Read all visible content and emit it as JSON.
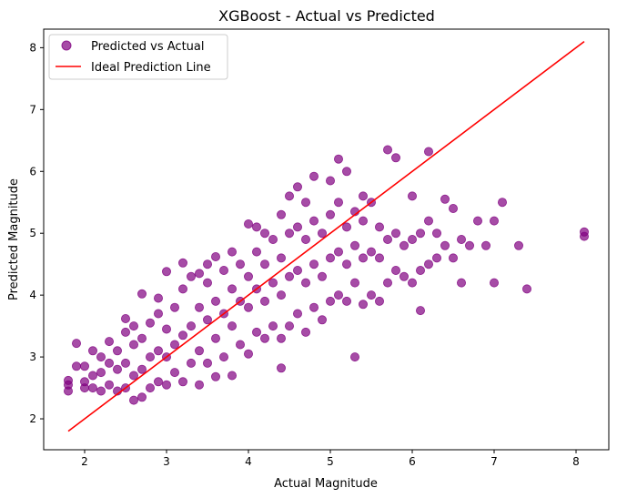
{
  "chart_data": {
    "type": "scatter",
    "title": "XGBoost - Actual vs Predicted",
    "xlabel": "Actual Magnitude",
    "ylabel": "Predicted Magnitude",
    "xlim": [
      1.5,
      8.4
    ],
    "ylim": [
      1.5,
      8.3
    ],
    "x_ticks": [
      "2",
      "3",
      "4",
      "5",
      "6",
      "7",
      "8"
    ],
    "y_ticks": [
      "2",
      "3",
      "4",
      "5",
      "6",
      "7",
      "8"
    ],
    "grid": false,
    "legend_position": "top-left",
    "colors": {
      "points": "#800080",
      "ideal_line": "#ff0000"
    },
    "series": [
      {
        "name": "Predicted vs Actual",
        "kind": "scatter",
        "points": [
          [
            1.8,
            2.45
          ],
          [
            1.8,
            2.55
          ],
          [
            1.8,
            2.62
          ],
          [
            1.9,
            2.85
          ],
          [
            1.9,
            3.22
          ],
          [
            2.0,
            2.5
          ],
          [
            2.0,
            2.6
          ],
          [
            2.0,
            2.85
          ],
          [
            2.1,
            2.5
          ],
          [
            2.1,
            2.7
          ],
          [
            2.1,
            3.1
          ],
          [
            2.2,
            2.45
          ],
          [
            2.2,
            2.75
          ],
          [
            2.2,
            3.0
          ],
          [
            2.3,
            2.55
          ],
          [
            2.3,
            2.9
          ],
          [
            2.3,
            3.25
          ],
          [
            2.4,
            2.45
          ],
          [
            2.4,
            2.8
          ],
          [
            2.4,
            3.1
          ],
          [
            2.5,
            2.5
          ],
          [
            2.5,
            2.9
          ],
          [
            2.5,
            3.4
          ],
          [
            2.5,
            3.62
          ],
          [
            2.6,
            2.3
          ],
          [
            2.6,
            2.7
          ],
          [
            2.6,
            3.2
          ],
          [
            2.6,
            3.5
          ],
          [
            2.7,
            2.35
          ],
          [
            2.7,
            2.8
          ],
          [
            2.7,
            3.3
          ],
          [
            2.7,
            4.02
          ],
          [
            2.8,
            2.5
          ],
          [
            2.8,
            3.0
          ],
          [
            2.8,
            3.55
          ],
          [
            2.9,
            2.6
          ],
          [
            2.9,
            3.1
          ],
          [
            2.9,
            3.7
          ],
          [
            2.9,
            3.95
          ],
          [
            3.0,
            2.55
          ],
          [
            3.0,
            3.0
          ],
          [
            3.0,
            3.45
          ],
          [
            3.0,
            4.38
          ],
          [
            3.1,
            2.75
          ],
          [
            3.1,
            3.2
          ],
          [
            3.1,
            3.8
          ],
          [
            3.2,
            2.6
          ],
          [
            3.2,
            3.35
          ],
          [
            3.2,
            4.1
          ],
          [
            3.2,
            4.52
          ],
          [
            3.3,
            2.9
          ],
          [
            3.3,
            3.5
          ],
          [
            3.3,
            4.3
          ],
          [
            3.4,
            2.55
          ],
          [
            3.4,
            3.1
          ],
          [
            3.4,
            3.8
          ],
          [
            3.4,
            4.35
          ],
          [
            3.5,
            2.9
          ],
          [
            3.5,
            3.6
          ],
          [
            3.5,
            4.2
          ],
          [
            3.5,
            4.5
          ],
          [
            3.6,
            2.68
          ],
          [
            3.6,
            3.3
          ],
          [
            3.6,
            3.9
          ],
          [
            3.6,
            4.62
          ],
          [
            3.7,
            3.0
          ],
          [
            3.7,
            3.7
          ],
          [
            3.7,
            4.4
          ],
          [
            3.8,
            2.7
          ],
          [
            3.8,
            3.5
          ],
          [
            3.8,
            4.1
          ],
          [
            3.8,
            4.7
          ],
          [
            3.9,
            3.2
          ],
          [
            3.9,
            3.9
          ],
          [
            3.9,
            4.5
          ],
          [
            4.0,
            3.05
          ],
          [
            4.0,
            3.8
          ],
          [
            4.0,
            4.3
          ],
          [
            4.0,
            5.15
          ],
          [
            4.1,
            3.4
          ],
          [
            4.1,
            4.1
          ],
          [
            4.1,
            4.7
          ],
          [
            4.1,
            5.1
          ],
          [
            4.2,
            3.3
          ],
          [
            4.2,
            3.9
          ],
          [
            4.2,
            4.5
          ],
          [
            4.2,
            5.0
          ],
          [
            4.3,
            3.5
          ],
          [
            4.3,
            4.2
          ],
          [
            4.3,
            4.9
          ],
          [
            4.4,
            2.82
          ],
          [
            4.4,
            3.3
          ],
          [
            4.4,
            4.0
          ],
          [
            4.4,
            4.6
          ],
          [
            4.4,
            5.3
          ],
          [
            4.5,
            3.5
          ],
          [
            4.5,
            4.3
          ],
          [
            4.5,
            5.0
          ],
          [
            4.5,
            5.6
          ],
          [
            4.6,
            3.7
          ],
          [
            4.6,
            4.4
          ],
          [
            4.6,
            5.1
          ],
          [
            4.6,
            5.75
          ],
          [
            4.7,
            3.4
          ],
          [
            4.7,
            4.2
          ],
          [
            4.7,
            4.9
          ],
          [
            4.7,
            5.5
          ],
          [
            4.8,
            3.8
          ],
          [
            4.8,
            4.5
          ],
          [
            4.8,
            5.2
          ],
          [
            4.8,
            5.92
          ],
          [
            4.9,
            3.6
          ],
          [
            4.9,
            4.3
          ],
          [
            4.9,
            5.0
          ],
          [
            5.0,
            3.9
          ],
          [
            5.0,
            4.6
          ],
          [
            5.0,
            5.3
          ],
          [
            5.0,
            5.85
          ],
          [
            5.1,
            4.0
          ],
          [
            5.1,
            4.7
          ],
          [
            5.1,
            5.5
          ],
          [
            5.1,
            6.2
          ],
          [
            5.2,
            3.9
          ],
          [
            5.2,
            4.5
          ],
          [
            5.2,
            5.1
          ],
          [
            5.2,
            6.0
          ],
          [
            5.3,
            3.0
          ],
          [
            5.3,
            4.2
          ],
          [
            5.3,
            4.8
          ],
          [
            5.3,
            5.35
          ],
          [
            5.4,
            3.85
          ],
          [
            5.4,
            4.6
          ],
          [
            5.4,
            5.2
          ],
          [
            5.4,
            5.6
          ],
          [
            5.5,
            4.0
          ],
          [
            5.5,
            4.7
          ],
          [
            5.5,
            5.5
          ],
          [
            5.6,
            3.9
          ],
          [
            5.6,
            4.6
          ],
          [
            5.6,
            5.1
          ],
          [
            5.7,
            4.2
          ],
          [
            5.7,
            4.9
          ],
          [
            5.7,
            6.35
          ],
          [
            5.8,
            4.4
          ],
          [
            5.8,
            5.0
          ],
          [
            5.8,
            6.22
          ],
          [
            5.9,
            4.3
          ],
          [
            5.9,
            4.8
          ],
          [
            6.0,
            4.2
          ],
          [
            6.0,
            4.9
          ],
          [
            6.0,
            5.6
          ],
          [
            6.1,
            3.75
          ],
          [
            6.1,
            4.4
          ],
          [
            6.1,
            5.0
          ],
          [
            6.2,
            4.5
          ],
          [
            6.2,
            5.2
          ],
          [
            6.2,
            6.32
          ],
          [
            6.3,
            4.6
          ],
          [
            6.3,
            5.0
          ],
          [
            6.4,
            4.8
          ],
          [
            6.4,
            5.55
          ],
          [
            6.5,
            4.6
          ],
          [
            6.5,
            5.4
          ],
          [
            6.6,
            4.2
          ],
          [
            6.6,
            4.9
          ],
          [
            6.7,
            4.8
          ],
          [
            6.8,
            5.2
          ],
          [
            6.9,
            4.8
          ],
          [
            7.0,
            4.2
          ],
          [
            7.0,
            5.2
          ],
          [
            7.1,
            5.5
          ],
          [
            7.3,
            4.8
          ],
          [
            7.4,
            4.1
          ],
          [
            8.1,
            4.95
          ],
          [
            8.1,
            5.02
          ]
        ]
      },
      {
        "name": "Ideal Prediction Line",
        "kind": "line",
        "points": [
          [
            1.8,
            1.8
          ],
          [
            8.1,
            8.1
          ]
        ]
      }
    ]
  }
}
